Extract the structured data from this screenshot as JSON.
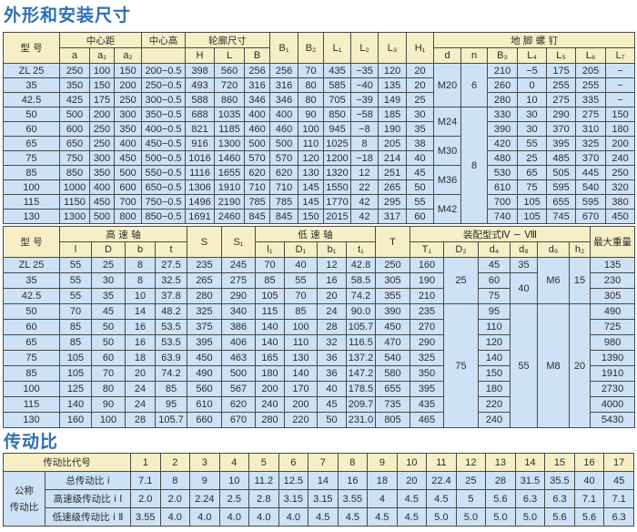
{
  "section1_title": "外形和安装尺寸",
  "section2_title": "传动比",
  "colors": {
    "title": "#2d6fb5",
    "header_bg": "#f6efc6",
    "cell_bg": "#cde2f6"
  },
  "dimensions_table": {
    "headers": {
      "model": "型  号",
      "center_distance": "中心距",
      "center_height": "中心高",
      "outline": "轮廓尺寸",
      "anchor_bolts": "地  脚  螺  钉",
      "a": "a",
      "a1": "a₁",
      "a2": "a₂",
      "H": "H",
      "L": "L",
      "B": "B",
      "B1": "B₁",
      "B2": "B₂",
      "L1": "L₁",
      "L2": "L₂",
      "L3": "L₃",
      "H1": "H₁",
      "d": "d",
      "n": "n",
      "B3": "B₃",
      "L4": "L₄",
      "L5": "L₅",
      "L6": "L₆",
      "L7": "L₇"
    },
    "rows": [
      [
        "ZL 25",
        "250",
        "100",
        "150",
        "200−0.5",
        "398",
        "560",
        "256",
        "256",
        "70",
        "435",
        "−35",
        "120",
        "20",
        "210",
        "−5",
        "175",
        "205",
        "−"
      ],
      [
        "35",
        "350",
        "150",
        "200",
        "250−0.5",
        "493",
        "720",
        "316",
        "316",
        "80",
        "585",
        "−40",
        "135",
        "20",
        "260",
        "0",
        "255",
        "255",
        "−"
      ],
      [
        "42.5",
        "425",
        "175",
        "250",
        "300−0.5",
        "588",
        "860",
        "346",
        "346",
        "80",
        "705",
        "−39",
        "149",
        "25",
        "280",
        "10",
        "275",
        "335",
        "−"
      ],
      [
        "50",
        "500",
        "200",
        "300",
        "350−0.5",
        "688",
        "1035",
        "400",
        "400",
        "90",
        "850",
        "−58",
        "185",
        "30",
        "330",
        "30",
        "290",
        "275",
        "150"
      ],
      [
        "60",
        "600",
        "250",
        "350",
        "400−0.5",
        "821",
        "1185",
        "460",
        "460",
        "100",
        "945",
        "−8",
        "190",
        "35",
        "390",
        "30",
        "370",
        "310",
        "180"
      ],
      [
        "65",
        "650",
        "250",
        "400",
        "450−0.5",
        "916",
        "1300",
        "500",
        "500",
        "110",
        "1025",
        "8",
        "205",
        "38",
        "420",
        "55",
        "395",
        "325",
        "200"
      ],
      [
        "75",
        "750",
        "300",
        "450",
        "500−0.5",
        "1016",
        "1460",
        "570",
        "570",
        "120",
        "1200",
        "−18",
        "214",
        "40",
        "480",
        "25",
        "485",
        "370",
        "240"
      ],
      [
        "85",
        "850",
        "350",
        "500",
        "550−0.5",
        "1116",
        "1655",
        "620",
        "620",
        "130",
        "1320",
        "12",
        "251",
        "45",
        "530",
        "65",
        "505",
        "445",
        "250"
      ],
      [
        "100",
        "1000",
        "400",
        "600",
        "650−0.5",
        "1306",
        "1910",
        "710",
        "710",
        "145",
        "1550",
        "22",
        "265",
        "50",
        "610",
        "75",
        "595",
        "540",
        "320"
      ],
      [
        "115",
        "1150",
        "450",
        "700",
        "750−0.5",
        "1496",
        "2190",
        "785",
        "785",
        "145",
        "1770",
        "42",
        "295",
        "55",
        "700",
        "105",
        "655",
        "595",
        "380"
      ],
      [
        "130",
        "1300",
        "500",
        "800",
        "850−0.5",
        "1691",
        "2460",
        "845",
        "845",
        "150",
        "2015",
        "42",
        "317",
        "60",
        "740",
        "105",
        "745",
        "670",
        "450"
      ]
    ],
    "d_groups": [
      {
        "value": "M20",
        "rows": 3
      },
      {
        "value": "M24",
        "rows": 2
      },
      {
        "value": "M30",
        "rows": 2
      },
      {
        "value": "M36",
        "rows": 2
      },
      {
        "value": "M42",
        "rows": 2
      }
    ],
    "n_groups": [
      {
        "value": "6",
        "rows": 3
      },
      {
        "value": "8",
        "rows": 8
      }
    ]
  },
  "shaft_table": {
    "headers": {
      "model": "型  号",
      "high_speed_shaft": "高  速  轴",
      "low_speed_shaft": "低  速  轴",
      "assembly": "装配型式Ⅳ − Ⅷ",
      "max_weight": "最大重量",
      "l": "l",
      "D": "D",
      "b": "b",
      "t": "t",
      "S": "S",
      "S1": "S₁",
      "h1": "l₁",
      "D1": "D₁",
      "b1": "b₁",
      "t1": "t₁",
      "T": "T",
      "T1": "T₁",
      "D2": "D₂",
      "d4": "d₄",
      "d8": "d₈",
      "d9": "d₉",
      "h2": "h₂"
    },
    "rows": [
      [
        "ZL 25",
        "55",
        "25",
        "8",
        "27.5",
        "235",
        "245",
        "70",
        "40",
        "12",
        "42.8",
        "250",
        "160",
        "45",
        "135"
      ],
      [
        "35",
        "55",
        "30",
        "8",
        "32.5",
        "265",
        "275",
        "85",
        "55",
        "16",
        "58.5",
        "305",
        "190",
        "60",
        "230"
      ],
      [
        "42.5",
        "55",
        "35",
        "10",
        "37.8",
        "280",
        "290",
        "105",
        "70",
        "20",
        "74.2",
        "355",
        "210",
        "75",
        "305"
      ],
      [
        "50",
        "70",
        "45",
        "14",
        "48.2",
        "325",
        "340",
        "115",
        "85",
        "24",
        "90.0",
        "390",
        "235",
        "95",
        "490"
      ],
      [
        "60",
        "85",
        "50",
        "16",
        "53.5",
        "375",
        "386",
        "140",
        "100",
        "28",
        "105.7",
        "450",
        "270",
        "110",
        "725"
      ],
      [
        "65",
        "85",
        "50",
        "16",
        "53.5",
        "395",
        "406",
        "140",
        "110",
        "32",
        "116.5",
        "470",
        "290",
        "120",
        "980"
      ],
      [
        "75",
        "105",
        "60",
        "18",
        "63.9",
        "450",
        "463",
        "165",
        "130",
        "36",
        "137.2",
        "540",
        "325",
        "140",
        "1390"
      ],
      [
        "85",
        "105",
        "70",
        "20",
        "74.2",
        "490",
        "500",
        "180",
        "140",
        "36",
        "147.2",
        "580",
        "350",
        "150",
        "1910"
      ],
      [
        "100",
        "125",
        "80",
        "24",
        "85",
        "560",
        "567",
        "200",
        "170",
        "40",
        "178.5",
        "655",
        "395",
        "180",
        "2730"
      ],
      [
        "115",
        "140",
        "90",
        "24",
        "95",
        "610",
        "620",
        "240",
        "200",
        "45",
        "209.7",
        "735",
        "435",
        "220",
        "4000"
      ],
      [
        "130",
        "160",
        "100",
        "28",
        "105.7",
        "660",
        "670",
        "280",
        "220",
        "50",
        "231.0",
        "805",
        "465",
        "240",
        "5430"
      ]
    ],
    "D2_groups": [
      {
        "value": "25",
        "rows": 3
      },
      {
        "value": "75",
        "rows": 8
      }
    ],
    "d8_groups": [
      {
        "value": "35",
        "rows": 1
      },
      {
        "value": "40",
        "rows": 2
      },
      {
        "value": "55",
        "rows": 8
      }
    ],
    "d9_groups": [
      {
        "value": "M6",
        "rows": 3
      },
      {
        "value": "M8",
        "rows": 8
      }
    ],
    "h2_groups": [
      {
        "value": "15",
        "rows": 3
      },
      {
        "value": "20",
        "rows": 8
      }
    ]
  },
  "ratio_table": {
    "code_label": "传动比代号",
    "nominal_label": "公称\n传动比",
    "codes": [
      "1",
      "2",
      "3",
      "4",
      "5",
      "6",
      "7",
      "8",
      "9",
      "10",
      "11",
      "12",
      "13",
      "14",
      "15",
      "16",
      "17"
    ],
    "rows": [
      {
        "label": "总传动比 i",
        "values": [
          "7.1",
          "8",
          "9",
          "10",
          "11.2",
          "12.5",
          "14",
          "16",
          "18",
          "20",
          "22.4",
          "25",
          "28",
          "31.5",
          "35.5",
          "40",
          "45"
        ]
      },
      {
        "label": "高速级传动比 i Ⅰ",
        "values": [
          "2.0",
          "2.0",
          "2.24",
          "2.5",
          "2.8",
          "3.15",
          "3.15",
          "3.55",
          "4",
          "4.5",
          "4.5",
          "5",
          "5.6",
          "6.3",
          "6.3",
          "7.1",
          "7.1"
        ]
      },
      {
        "label": "低速级传动比 i Ⅱ",
        "values": [
          "3.55",
          "4.0",
          "4.0",
          "4.0",
          "4.0",
          "4.0",
          "4.5",
          "4.5",
          "4.5",
          "4.5",
          "5.0",
          "5.0",
          "5.0",
          "5.0",
          "5.6",
          "5.6",
          "6.3"
        ]
      }
    ]
  }
}
